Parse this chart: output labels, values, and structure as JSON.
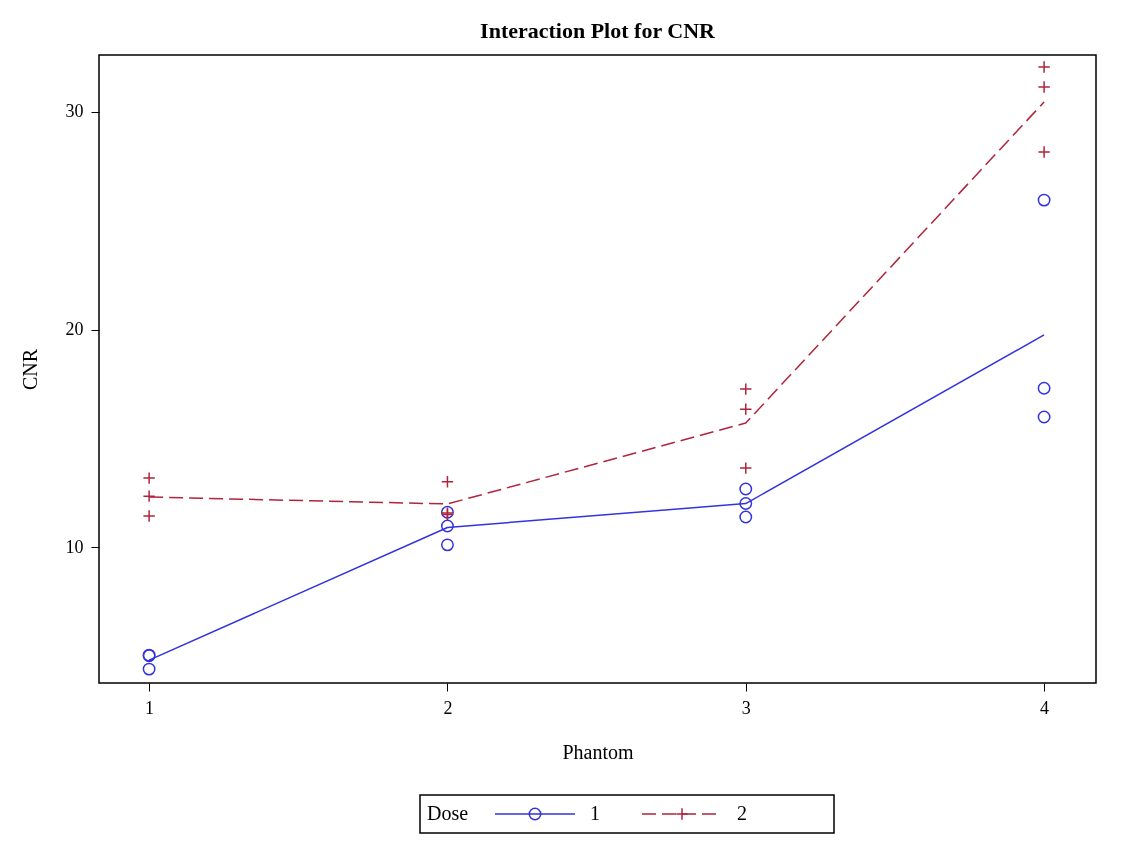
{
  "chart_data": {
    "type": "line",
    "title": "Interaction Plot for CNR",
    "xlabel": "Phantom",
    "ylabel": "CNR",
    "legend_title": "Dose",
    "legend": "bottom",
    "grid": false,
    "xlim": [
      0.832,
      4.174
    ],
    "xticks": [
      1,
      2,
      3,
      4
    ],
    "ylim": [
      3.75,
      32.62
    ],
    "yticks": [
      10,
      20,
      30
    ],
    "series": [
      {
        "name": "1",
        "color": "#3333dd",
        "line_style": "solid",
        "x": [
          1,
          2,
          3,
          4
        ],
        "values": [
          4.8,
          10.9,
          12.0,
          19.75
        ]
      },
      {
        "name": "2",
        "color": "#b0243c",
        "line_style": "dashed",
        "x": [
          1,
          2,
          3,
          4
        ],
        "values": [
          12.3,
          11.98,
          15.7,
          30.46
        ]
      },
      {
        "type": "scatter",
        "color": "#3333dd",
        "marker": "circle",
        "x": [
          1,
          1,
          1,
          2,
          2,
          2,
          3,
          3,
          3,
          4,
          4,
          4
        ],
        "values": [
          5.03,
          5.0,
          4.39,
          11.6,
          10.97,
          10.1,
          12.67,
          12.0,
          11.38,
          25.95,
          17.3,
          15.98
        ]
      },
      {
        "type": "scatter",
        "color": "#b0243c",
        "marker": "cross",
        "x": [
          1,
          1,
          1,
          2,
          2,
          2,
          3,
          3,
          3,
          4,
          4,
          4
        ],
        "values": [
          13.17,
          12.34,
          11.43,
          13.0,
          11.56,
          11.5,
          17.26,
          16.34,
          13.63,
          32.07,
          31.15,
          28.16
        ]
      }
    ]
  }
}
